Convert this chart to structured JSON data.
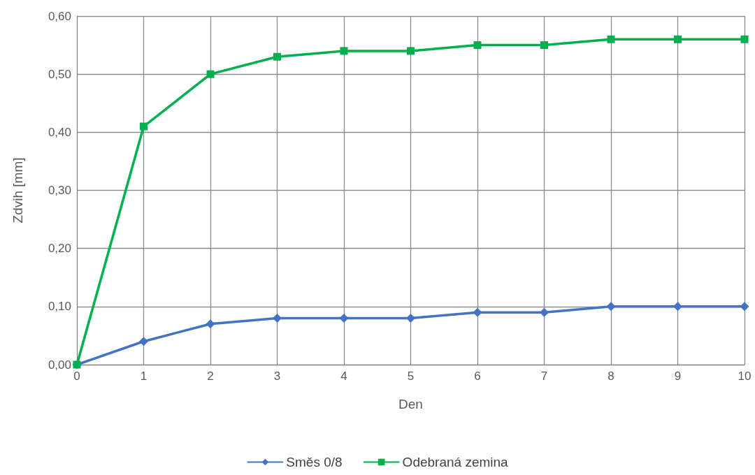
{
  "chart_data": {
    "type": "line",
    "xlabel": "Den",
    "ylabel": "Zdvih [mm]",
    "x": [
      0,
      1,
      2,
      3,
      4,
      5,
      6,
      7,
      8,
      9,
      10
    ],
    "series": [
      {
        "name": "Směs 0/8",
        "color": "#4472c4",
        "marker": "diamond",
        "values": [
          0,
          0.04,
          0.07,
          0.08,
          0.08,
          0.08,
          0.09,
          0.09,
          0.1,
          0.1,
          0.1
        ]
      },
      {
        "name": "Odebraná zemina",
        "color": "#00b050",
        "marker": "square",
        "values": [
          0,
          0.41,
          0.5,
          0.53,
          0.54,
          0.54,
          0.55,
          0.55,
          0.56,
          0.56,
          0.56
        ]
      }
    ],
    "xlim": [
      0,
      10
    ],
    "xticks": [
      0,
      1,
      2,
      3,
      4,
      5,
      6,
      7,
      8,
      9,
      10
    ],
    "ylim": [
      0,
      0.6
    ],
    "yticks": [
      {
        "value": 0,
        "label": "0,00"
      },
      {
        "value": 0.1,
        "label": "0,10"
      },
      {
        "value": 0.2,
        "label": "0,20"
      },
      {
        "value": 0.3,
        "label": "0,30"
      },
      {
        "value": 0.4,
        "label": "0,40"
      },
      {
        "value": 0.5,
        "label": "0,50"
      },
      {
        "value": 0.6,
        "label": "0,60"
      }
    ],
    "grid": true,
    "legend": "bottom",
    "line_style": "solid"
  }
}
